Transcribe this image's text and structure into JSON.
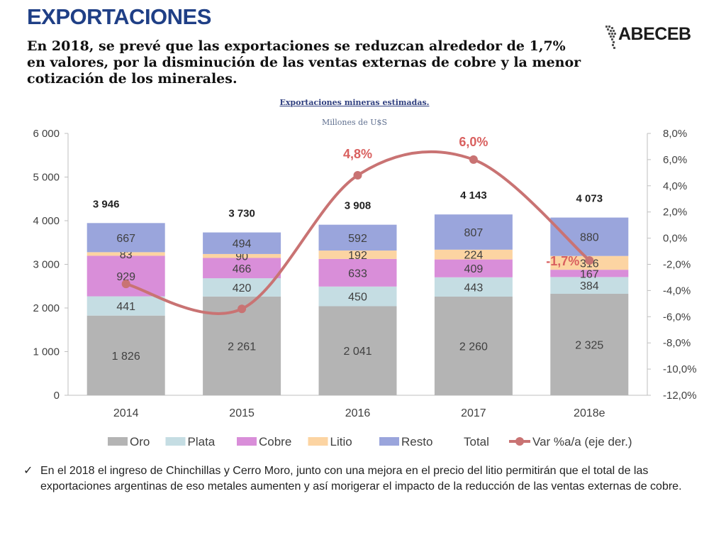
{
  "page": {
    "title": "EXPORTACIONES",
    "subtitle": "En 2018, se prevé que las exportaciones se reduzcan alrededor de 1,7% en valores, por la disminución de las ventas externas de cobre y la menor cotización de los minerales.",
    "logo": "ABECEB",
    "note": "En el 2018 el ingreso de Chinchillas y Cerro Moro, junto con una mejora en el precio del litio permitirán que el total de las exportaciones argentinas de eso metales aumenten y así morigerar el impacto de la reducción de las ventas externas de cobre."
  },
  "chart_data": {
    "type": "bar",
    "stacked": true,
    "title": "Exportaciones mineras estimadas.",
    "subtitle": "Millones de U$S",
    "categories": [
      "2014",
      "2015",
      "2016",
      "2017",
      "2018e"
    ],
    "series": [
      {
        "name": "Oro",
        "color": "#b4b4b4",
        "values": [
          1826,
          2261,
          2041,
          2260,
          2325
        ],
        "labels": [
          "1 826",
          "2 261",
          "2 041",
          "2 260",
          "2 325"
        ]
      },
      {
        "name": "Plata",
        "color": "#c5dde3",
        "values": [
          441,
          420,
          450,
          443,
          384
        ],
        "labels": [
          "441",
          "420",
          "450",
          "443",
          "384"
        ]
      },
      {
        "name": "Cobre",
        "color": "#d98ed9",
        "values": [
          929,
          466,
          633,
          409,
          167
        ],
        "labels": [
          "929",
          "466",
          "633",
          "409",
          "167"
        ]
      },
      {
        "name": "Litio",
        "color": "#fcd4a2",
        "values": [
          83,
          90,
          192,
          224,
          316
        ],
        "labels": [
          "83",
          "90",
          "192",
          "224",
          "316"
        ]
      },
      {
        "name": "Resto",
        "color": "#9aa5dc",
        "values": [
          667,
          494,
          592,
          807,
          880
        ],
        "labels": [
          "667",
          "494",
          "592",
          "807",
          "880"
        ]
      }
    ],
    "totals": {
      "name": "Total",
      "values": [
        3946,
        3730,
        3908,
        4143,
        4073
      ],
      "labels": [
        "3 946",
        "3 730",
        "3 908",
        "4 143",
        "4 073"
      ]
    },
    "line": {
      "name": "Var %a/a (eje der.)",
      "color": "#c97373",
      "values": [
        -3.5,
        -5.4,
        4.8,
        6.0,
        -1.7
      ],
      "labels": [
        "",
        "",
        "4,8%",
        "6,0%",
        "-1,7%"
      ]
    },
    "y_left": {
      "min": 0,
      "max": 6000,
      "ticks": [
        "0",
        "1 000",
        "2 000",
        "3 000",
        "4 000",
        "5 000",
        "6 000"
      ]
    },
    "y_right": {
      "min": -12,
      "max": 8,
      "ticks": [
        "-12,0%",
        "-10,0%",
        "-8,0%",
        "-6,0%",
        "-4,0%",
        "-2,0%",
        "0,0%",
        "2,0%",
        "4,0%",
        "6,0%",
        "8,0%"
      ]
    },
    "legend": "bottom"
  }
}
